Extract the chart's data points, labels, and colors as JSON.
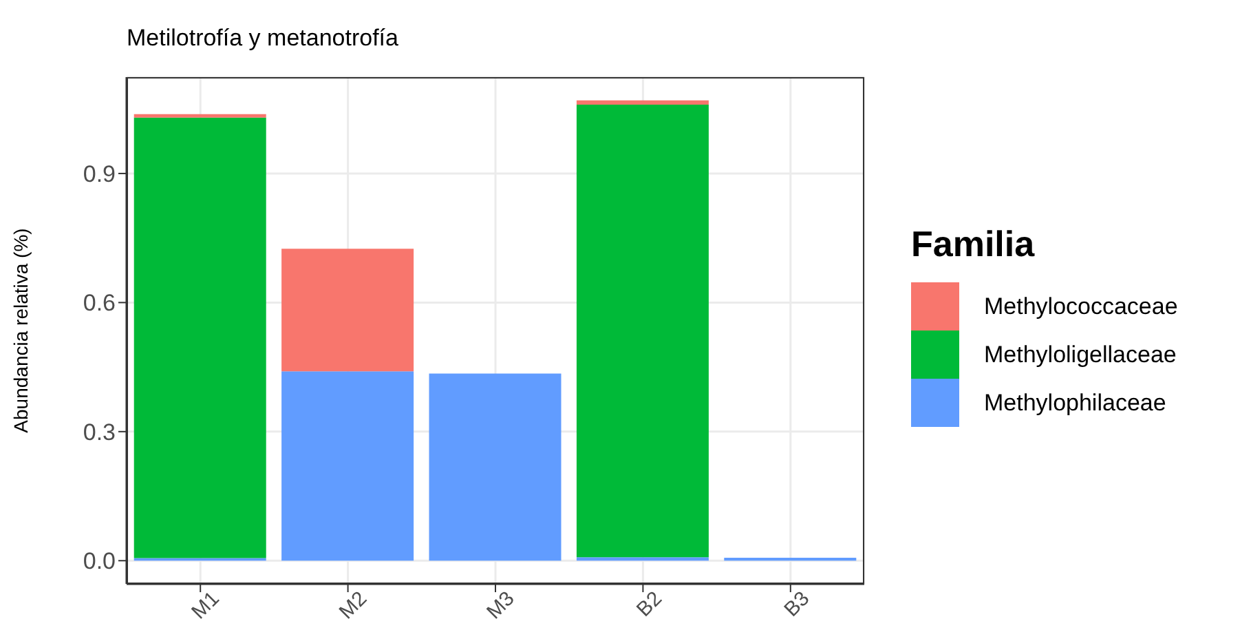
{
  "chart_data": {
    "type": "bar",
    "title": "Metilotrofía y metanotrofía",
    "ylabel": "Abundancia relativa (%)",
    "legend_title": "Familia",
    "categories": [
      "M1",
      "M2",
      "M3",
      "B2",
      "B3"
    ],
    "stacked": true,
    "series": [
      {
        "name": "Methylophilaceae",
        "color": "#619cff",
        "values": [
          0.006,
          0.44,
          0.435,
          0.008,
          0.007
        ]
      },
      {
        "name": "Methyloligellaceae",
        "color": "#00ba38",
        "values": [
          1.024,
          0,
          0,
          1.052,
          0
        ]
      },
      {
        "name": "Methylococcaceae",
        "color": "#f8766d",
        "values": [
          0.008,
          0.285,
          0,
          0.01,
          0
        ]
      }
    ],
    "ylim": [
      -0.054,
      1.124
    ],
    "yticks": [
      {
        "value": 0,
        "label": "0.0"
      },
      {
        "value": 0.3,
        "label": "0.3"
      },
      {
        "value": 0.6,
        "label": "0.6"
      },
      {
        "value": 0.9,
        "label": "0.9"
      }
    ],
    "grid": true,
    "legend": "right"
  }
}
